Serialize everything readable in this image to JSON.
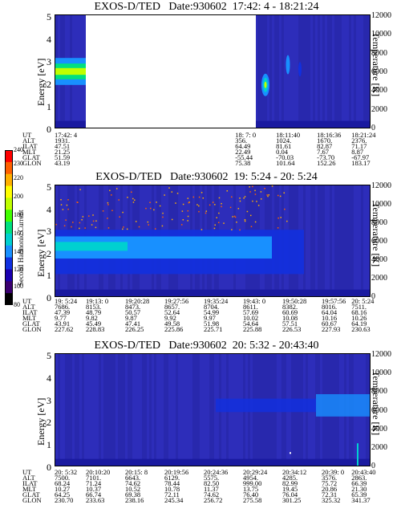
{
  "colorbar": {
    "label": "Second Harmonic Current",
    "ticks": [
      "240",
      "230",
      "220",
      "200",
      "180",
      "160",
      "140",
      "120",
      "100",
      "80"
    ],
    "colors": [
      "#000000",
      "#3a0070",
      "#1a00b0",
      "#1030e0",
      "#1890ff",
      "#00d0d0",
      "#00e080",
      "#40ff00",
      "#c0ff00",
      "#ffff00",
      "#ffb000",
      "#ff6000",
      "#ff0000"
    ]
  },
  "energy_axis": {
    "label": "Energy [eV]",
    "ticks": [
      "5",
      "4",
      "3",
      "2",
      "1",
      "0"
    ]
  },
  "temperature_axis": {
    "label": "Temperature [K]",
    "ticks": [
      "12000",
      "10000",
      "8000",
      "6000",
      "4000",
      "2000",
      "0"
    ]
  },
  "panels": [
    {
      "title": "EXOS-D/TED   Date:930602  17:42: 4 - 18:21:24",
      "ephemeris": {
        "labels": [
          "UT",
          "ALT",
          "ILAT",
          "MLT",
          "GLAT",
          "GLON"
        ],
        "columns": [
          {
            "pos": 0.0,
            "values": [
              "17:42: 4",
              "1931.",
              "47.51",
              "21.25",
              "51.59",
              "43.19"
            ]
          },
          {
            "pos": 0.6,
            "values": [
              "18: 7: 0",
              "356.",
              "64.49",
              "22.49",
              "-55.44",
              "75.38"
            ]
          },
          {
            "pos": 0.73,
            "values": [
              "18:11:40",
              "1024.",
              "81.61",
              "0.04",
              "-70.03",
              "101.64"
            ]
          },
          {
            "pos": 0.86,
            "values": [
              "18:16:36",
              "1670.",
              "82.87",
              "7.67",
              "-73.70",
              "152.26"
            ]
          },
          {
            "pos": 0.97,
            "values": [
              "18:21:24",
              "2376.",
              "71.17",
              "8.87",
              "-67.97",
              "183.17"
            ]
          }
        ]
      }
    },
    {
      "title": "EXOS-D/TED   Date:930602  19: 5:24 - 20: 5:24",
      "ephemeris": {
        "labels": [
          "UT",
          "ALT",
          "ILAT",
          "MLT",
          "GLAT",
          "GLON"
        ],
        "columns": [
          {
            "pos": 0.0,
            "values": [
              "19: 5:24",
              "7686.",
              "47.39",
              "9.77",
              "43.91",
              "227.62"
            ]
          },
          {
            "pos": 0.125,
            "values": [
              "19:13: 0",
              "8153.",
              "48.79",
              "9.82",
              "45.49",
              "228.83"
            ]
          },
          {
            "pos": 0.25,
            "values": [
              "19:20:28",
              "8473.",
              "50.57",
              "9.87",
              "47.41",
              "226.25"
            ]
          },
          {
            "pos": 0.375,
            "values": [
              "19:27:56",
              "8657.",
              "52.64",
              "9.92",
              "49.58",
              "225.86"
            ]
          },
          {
            "pos": 0.5,
            "values": [
              "19:35:24",
              "8704.",
              "54.99",
              "9.97",
              "51.98",
              "225.71"
            ]
          },
          {
            "pos": 0.625,
            "values": [
              "19:43: 0",
              "8611.",
              "57.69",
              "10.02",
              "54.64",
              "225.88"
            ]
          },
          {
            "pos": 0.75,
            "values": [
              "19:50:28",
              "8382.",
              "60.69",
              "10.08",
              "57.51",
              "226.53"
            ]
          },
          {
            "pos": 0.875,
            "values": [
              "19:57:56",
              "8016.",
              "64.04",
              "10.16",
              "60.67",
              "227.93"
            ]
          },
          {
            "pos": 0.97,
            "values": [
              "20: 5:24",
              "7511.",
              "68.16",
              "10.26",
              "64.19",
              "230.63"
            ]
          }
        ]
      }
    },
    {
      "title": "EXOS-D/TED   Date:930602  20: 5:32 - 20:43:40",
      "ephemeris": {
        "labels": [
          "UT",
          "ALT",
          "ILAT",
          "MLT",
          "GLAT",
          "GLON"
        ],
        "columns": [
          {
            "pos": 0.0,
            "values": [
              "20: 5:32",
              "7500.",
              "68.24",
              "10.27",
              "64.25",
              "230.70"
            ]
          },
          {
            "pos": 0.125,
            "values": [
              "20:10:20",
              "7101.",
              "71.24",
              "10.37",
              "66.74",
              "233.63"
            ]
          },
          {
            "pos": 0.25,
            "values": [
              "20:15: 8",
              "6643.",
              "74.62",
              "10.52",
              "69.38",
              "238.16"
            ]
          },
          {
            "pos": 0.375,
            "values": [
              "20:19:56",
              "6129.",
              "78.44",
              "10.78",
              "72.11",
              "245.34"
            ]
          },
          {
            "pos": 0.5,
            "values": [
              "20:24:36",
              "5575.",
              "82.50",
              "11.37",
              "74.62",
              "256.72"
            ]
          },
          {
            "pos": 0.625,
            "values": [
              "20:29:24",
              "4954.",
              "999.00",
              "13.75",
              "76.40",
              "275.58"
            ]
          },
          {
            "pos": 0.75,
            "values": [
              "20:34:12",
              "4285.",
              "82.99",
              "19.45",
              "76.04",
              "301.25"
            ]
          },
          {
            "pos": 0.875,
            "values": [
              "20:39: 0",
              "3576.",
              "75.72",
              "20.86",
              "72.31",
              "325.32"
            ]
          },
          {
            "pos": 0.97,
            "values": [
              "20:43:40",
              "2863.",
              "66.39",
              "21.30",
              "65.39",
              "341.37"
            ]
          }
        ]
      }
    }
  ],
  "chart_data": {
    "type": "heatmap",
    "panels": [
      {
        "title": "EXOS-D/TED   Date:930602  17:42: 4 - 18:21:24",
        "xlabel": "UT",
        "ylabel": "Energy [eV]",
        "y2label": "Temperature [K]",
        "ylim": [
          0,
          5
        ],
        "y2lim": [
          0,
          12000
        ],
        "data_gap": {
          "from": "17:45",
          "to": "18: 7: 0"
        },
        "features": [
          {
            "type": "band",
            "ut_from": "17:42: 4",
            "ut_to": "17:45",
            "energy_center": 2.5,
            "energy_width": 0.6,
            "level": 200
          },
          {
            "type": "burst",
            "ut": "18: 8",
            "energy_center": 1.9,
            "energy_width": 0.6,
            "level": 220
          },
          {
            "type": "burst",
            "ut": "18:13",
            "energy_center": 2.8,
            "energy_width": 1.0,
            "level": 150
          }
        ]
      },
      {
        "title": "EXOS-D/TED   Date:930602  19: 5:24 - 20: 5:24",
        "xlabel": "UT",
        "ylabel": "Energy [eV]",
        "y2label": "Temperature [K]",
        "ylim": [
          0,
          5
        ],
        "y2lim": [
          0,
          12000
        ],
        "features": [
          {
            "type": "band",
            "ut_from": "19: 5:24",
            "ut_to": "19:57",
            "energy_center": 2.2,
            "energy_width": 0.9,
            "level": 140
          },
          {
            "type": "sparse_points",
            "ut_from": "19: 5:24",
            "ut_to": "19:40",
            "energy_from": 3.0,
            "energy_to": 5.0,
            "level": 220
          }
        ]
      },
      {
        "title": "EXOS-D/TED   Date:930602  20: 5:32 - 20:43:40",
        "xlabel": "UT",
        "ylabel": "Energy [eV]",
        "y2label": "Temperature [K]",
        "ylim": [
          0,
          5
        ],
        "y2lim": [
          0,
          12000
        ],
        "features": [
          {
            "type": "band",
            "ut_from": "20:34",
            "ut_to": "20:43:40",
            "energy_center": 2.7,
            "energy_width": 0.8,
            "level": 125
          }
        ]
      }
    ]
  }
}
